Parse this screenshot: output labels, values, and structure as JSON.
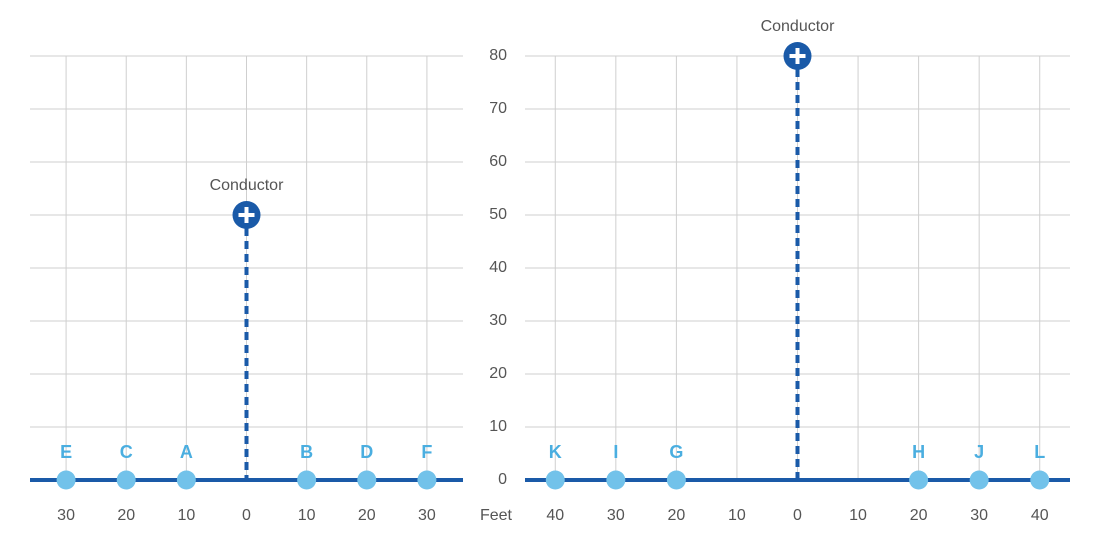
{
  "chart_data": [
    {
      "type": "scatter",
      "xlim": [
        -36,
        36
      ],
      "ylim": [
        0,
        80
      ],
      "xticks": [
        {
          "value": -30,
          "label": "30"
        },
        {
          "value": -20,
          "label": "20"
        },
        {
          "value": -10,
          "label": "10"
        },
        0,
        10,
        20,
        30
      ],
      "yticks": [
        0,
        10,
        20,
        30,
        40,
        50,
        60,
        70,
        80
      ],
      "ytick_labels": false,
      "grid": true,
      "axis_color": "#1a5aa8",
      "points": {
        "labels": [
          "E",
          "C",
          "A",
          "B",
          "D",
          "F"
        ],
        "x": [
          -30,
          -20,
          -10,
          10,
          20,
          30
        ],
        "y": [
          0,
          0,
          0,
          0,
          0,
          0
        ],
        "color": "#72c2ea"
      },
      "conductor": {
        "label": "Conductor",
        "x": 0,
        "y": 50,
        "color": "#1a5aa8"
      }
    },
    {
      "type": "scatter",
      "x_label": "Feet",
      "xlim": [
        -45,
        45
      ],
      "ylim": [
        0,
        80
      ],
      "xticks": [
        {
          "value": -40,
          "label": "40"
        },
        {
          "value": -30,
          "label": "30"
        },
        {
          "value": -20,
          "label": "20"
        },
        {
          "value": -10,
          "label": "10"
        },
        0,
        10,
        20,
        30,
        40
      ],
      "yticks": [
        0,
        10,
        20,
        30,
        40,
        50,
        60,
        70,
        80
      ],
      "ytick_labels": true,
      "grid": true,
      "axis_color": "#1a5aa8",
      "points": {
        "labels": [
          "K",
          "I",
          "G",
          "H",
          "J",
          "L"
        ],
        "x": [
          -40,
          -30,
          -20,
          20,
          30,
          40
        ],
        "y": [
          0,
          0,
          0,
          0,
          0,
          0
        ],
        "color": "#72c2ea"
      },
      "conductor": {
        "label": "Conductor",
        "x": 0,
        "y": 80,
        "color": "#1a5aa8"
      }
    }
  ]
}
